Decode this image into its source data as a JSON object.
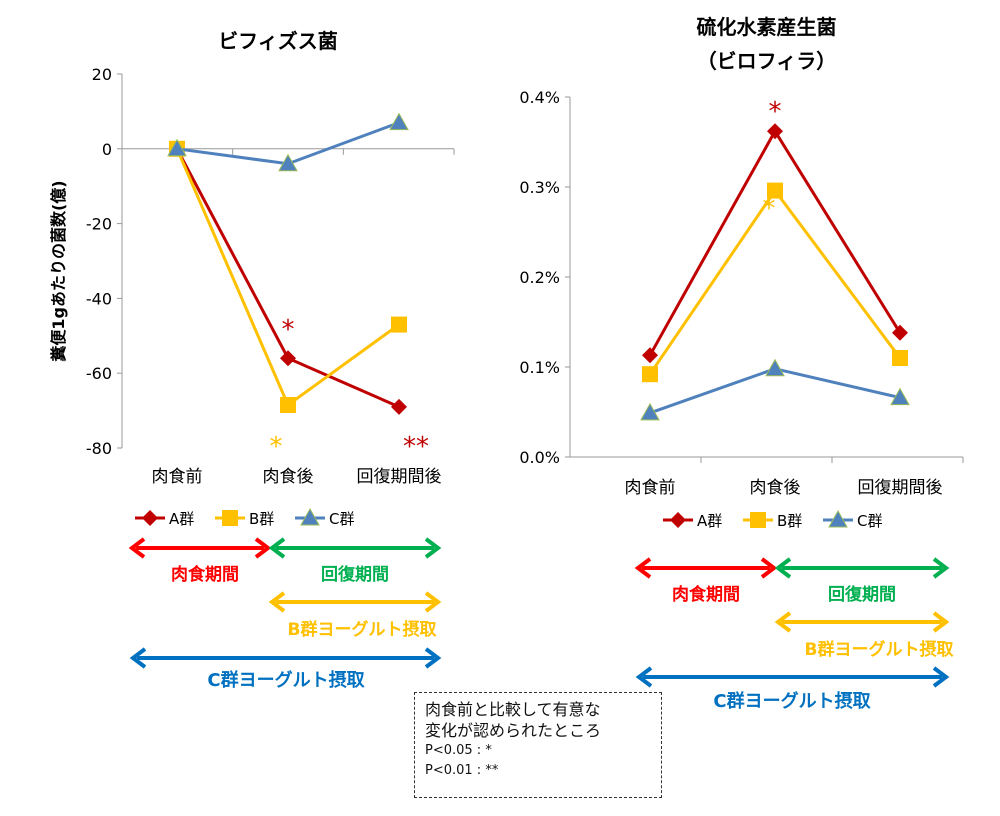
{
  "colors": {
    "A": "#c00000",
    "B": "#ffc000",
    "C": "#4f81bd",
    "meat": "#ff0000",
    "recovery": "#00b050",
    "b_yogurt": "#ffc000",
    "c_yogurt": "#0070c0"
  },
  "chart_data": [
    {
      "type": "line",
      "title": "ビフィズス菌",
      "ylabel": "糞便1gあたりの菌数(億)",
      "categories": [
        "肉食前",
        "肉食後",
        "回復期間後"
      ],
      "ylim": [
        -80,
        20
      ],
      "yticks": [
        "20",
        "0",
        "-20",
        "-40",
        "-60",
        "-80"
      ],
      "ytick_values": [
        20,
        0,
        -20,
        -40,
        -60,
        -80
      ],
      "series": [
        {
          "name": "A群",
          "marker": "diamond",
          "values": [
            0,
            -56,
            -69
          ]
        },
        {
          "name": "B群",
          "marker": "square",
          "values": [
            0,
            -68.5,
            -47
          ]
        },
        {
          "name": "C群",
          "marker": "triangle",
          "values": [
            0,
            -4,
            7
          ]
        }
      ],
      "annotations": [
        {
          "text": "*",
          "category": "肉食後",
          "series": "A群"
        },
        {
          "text": "*",
          "category": "肉食後",
          "series": "B群"
        },
        {
          "text": "**",
          "category": "回復期間後",
          "series": "A群"
        }
      ],
      "legend": "bottom",
      "grid": false
    },
    {
      "type": "line",
      "title": "硫化水素産生菌",
      "subtitle": "（ビロフィラ）",
      "categories": [
        "肉食前",
        "肉食後",
        "回復期間後"
      ],
      "ylim": [
        0,
        0.4
      ],
      "yticks": [
        "0.4%",
        "0.3%",
        "0.2%",
        "0.1%",
        "0.0%"
      ],
      "ytick_values": [
        0.4,
        0.3,
        0.2,
        0.1,
        0
      ],
      "series": [
        {
          "name": "A群",
          "marker": "diamond",
          "values": [
            0.113,
            0.362,
            0.138
          ]
        },
        {
          "name": "B群",
          "marker": "square",
          "values": [
            0.092,
            0.296,
            0.11
          ]
        },
        {
          "name": "C群",
          "marker": "triangle",
          "values": [
            0.049,
            0.098,
            0.066
          ]
        }
      ],
      "annotations": [
        {
          "text": "*",
          "category": "肉食後",
          "series": "A群"
        },
        {
          "text": "*",
          "category": "肉食後",
          "series": "B群"
        }
      ],
      "legend": "bottom",
      "grid": false
    }
  ],
  "periods": {
    "meat": "肉食期間",
    "recovery": "回復期間",
    "b_yogurt": "B群ヨーグルト摂取",
    "c_yogurt": "C群ヨーグルト摂取"
  },
  "note": {
    "line1": "肉食前と比較して有意な",
    "line2": "変化が認められたところ",
    "p05": "P<0.05 : *",
    "p01": "P<0.01  : **"
  }
}
